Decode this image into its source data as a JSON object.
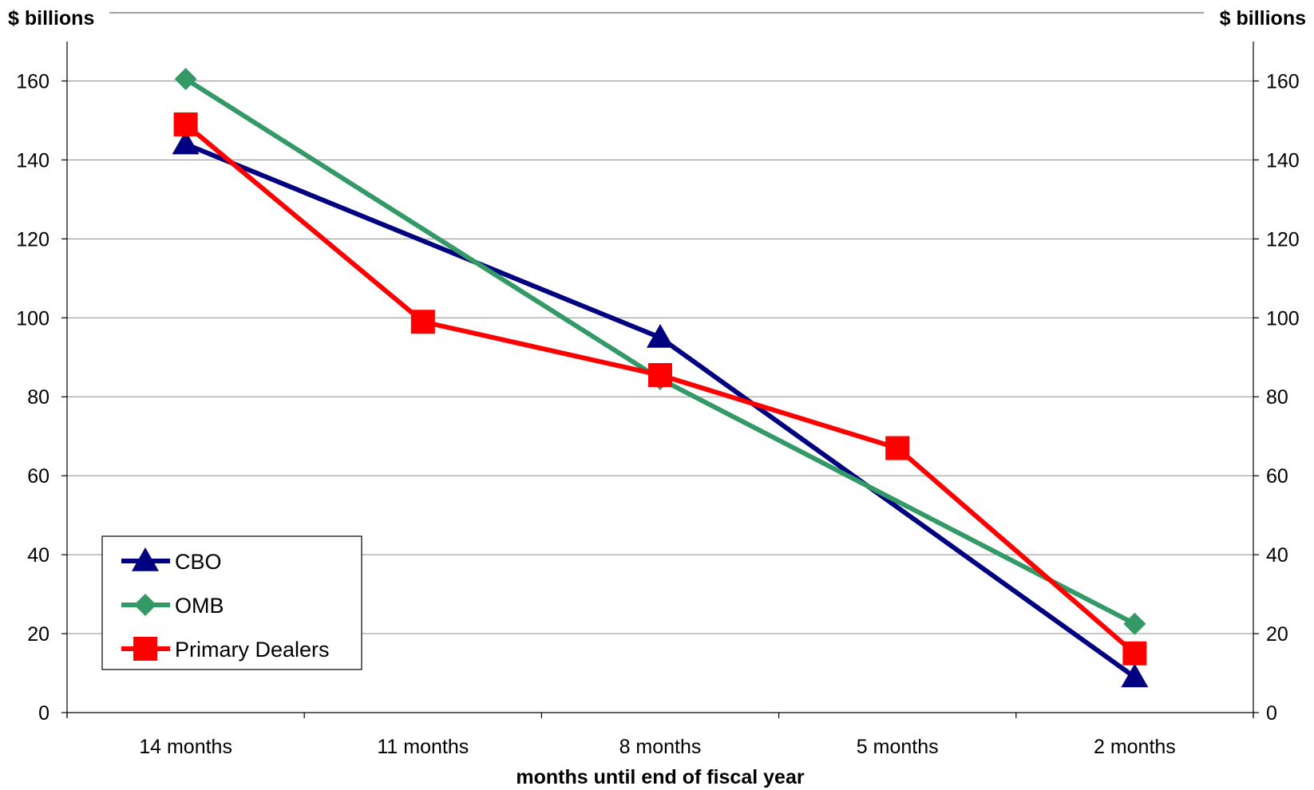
{
  "chart_data": {
    "type": "line",
    "categories": [
      "14 months",
      "11 months",
      "8 months",
      "5 months",
      "2 months"
    ],
    "series": [
      {
        "name": "CBO",
        "values": [
          144,
          null,
          95,
          null,
          9
        ],
        "color": "#000080",
        "marker": "triangle"
      },
      {
        "name": "OMB",
        "values": [
          160.5,
          null,
          84.5,
          null,
          22.5
        ],
        "color": "#339966",
        "marker": "diamond"
      },
      {
        "name": "Primary Dealers",
        "values": [
          149,
          99,
          85.5,
          67,
          15
        ],
        "color": "#ff0000",
        "marker": "square"
      }
    ],
    "xlabel": "months until end of fiscal year",
    "ylabel_left": "$ billions",
    "ylabel_right": "$ billions",
    "ylim": [
      0,
      170
    ],
    "yticks": [
      0,
      20,
      40,
      60,
      80,
      100,
      120,
      140,
      160
    ],
    "grid": true,
    "legend_position": "bottom-left"
  }
}
